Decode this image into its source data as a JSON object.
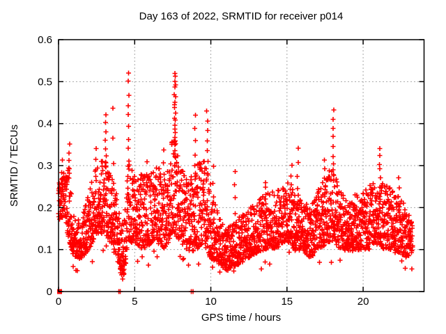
{
  "chart_data": {
    "type": "scatter",
    "title": "Day 163 of 2022, SRMTID for receiver p014",
    "xlabel": "GPS time / hours",
    "ylabel": "SRMTID / TECUs",
    "xlim": [
      0,
      24
    ],
    "ylim": [
      0,
      0.6
    ],
    "xticks": [
      "0",
      "5",
      "10",
      "15",
      "20"
    ],
    "xtick_values": [
      0,
      5,
      10,
      15,
      20
    ],
    "yticks": [
      "0",
      "0.1",
      "0.2",
      "0.3",
      "0.4",
      "0.5",
      "0.6"
    ],
    "ytick_values": [
      0,
      0.1,
      0.2,
      0.3,
      0.4,
      0.5,
      0.6
    ],
    "grid": "dotted",
    "legend": "none",
    "marker": {
      "shape": "plus",
      "color": "#ff0000",
      "size": 7,
      "stroke_width": 1.6
    },
    "colors": {
      "points": "#ff0000",
      "grid": "#a6a6a6",
      "border": "#000000",
      "background": "#ffffff"
    },
    "sampling": {
      "points_per_hour": 120,
      "t_start": 0.0,
      "t_end": 23.25,
      "seed": 163
    },
    "band_envelope": {
      "comment": "approximate 10th-90th percentile band of SRMTID vs GPS hour read from plot",
      "t": [
        0.0,
        0.3,
        0.7,
        1.0,
        1.5,
        2.0,
        2.5,
        3.0,
        3.5,
        4.0,
        4.3,
        4.6,
        5.0,
        5.5,
        6.0,
        6.5,
        7.0,
        7.5,
        8.0,
        8.5,
        9.0,
        9.5,
        10.0,
        10.5,
        11.0,
        11.5,
        12.0,
        12.5,
        13.0,
        13.5,
        14.0,
        14.5,
        15.0,
        15.5,
        16.0,
        16.5,
        17.0,
        17.5,
        18.0,
        18.5,
        19.0,
        19.5,
        20.0,
        20.5,
        21.0,
        21.5,
        22.0,
        22.5,
        23.0,
        23.25
      ],
      "lo": [
        0.17,
        0.18,
        0.12,
        0.08,
        0.08,
        0.1,
        0.14,
        0.14,
        0.11,
        0.05,
        0.04,
        0.12,
        0.12,
        0.1,
        0.11,
        0.12,
        0.1,
        0.14,
        0.12,
        0.1,
        0.1,
        0.11,
        0.08,
        0.07,
        0.05,
        0.06,
        0.07,
        0.08,
        0.09,
        0.1,
        0.1,
        0.11,
        0.12,
        0.1,
        0.1,
        0.08,
        0.1,
        0.11,
        0.12,
        0.1,
        0.1,
        0.1,
        0.1,
        0.1,
        0.11,
        0.1,
        0.1,
        0.09,
        0.08,
        0.09
      ],
      "hi": [
        0.26,
        0.28,
        0.3,
        0.18,
        0.17,
        0.24,
        0.3,
        0.32,
        0.28,
        0.2,
        0.16,
        0.32,
        0.27,
        0.28,
        0.28,
        0.3,
        0.27,
        0.38,
        0.3,
        0.27,
        0.3,
        0.32,
        0.26,
        0.18,
        0.15,
        0.17,
        0.18,
        0.2,
        0.22,
        0.23,
        0.24,
        0.25,
        0.26,
        0.25,
        0.22,
        0.2,
        0.24,
        0.28,
        0.3,
        0.24,
        0.21,
        0.23,
        0.24,
        0.26,
        0.28,
        0.26,
        0.24,
        0.22,
        0.19,
        0.16
      ],
      "occasional_low_fraction": 0.012,
      "skew": 1.45
    },
    "burst_spikes": [
      {
        "t": 0.25,
        "peak": 0.315,
        "n": 3
      },
      {
        "t": 0.7,
        "peak": 0.35,
        "n": 5
      },
      {
        "t": 2.45,
        "peak": 0.34,
        "n": 4
      },
      {
        "t": 3.1,
        "peak": 0.42,
        "n": 8
      },
      {
        "t": 3.6,
        "peak": 0.435,
        "n": 4
      },
      {
        "t": 4.6,
        "peak": 0.525,
        "n": 10
      },
      {
        "t": 5.8,
        "peak": 0.31,
        "n": 3
      },
      {
        "t": 6.9,
        "peak": 0.335,
        "n": 4
      },
      {
        "t": 7.65,
        "peak": 0.52,
        "n": 22
      },
      {
        "t": 8.95,
        "peak": 0.42,
        "n": 6
      },
      {
        "t": 9.75,
        "peak": 0.43,
        "n": 8
      },
      {
        "t": 10.15,
        "peak": 0.3,
        "n": 3
      },
      {
        "t": 11.6,
        "peak": 0.29,
        "n": 5
      },
      {
        "t": 13.6,
        "peak": 0.26,
        "n": 5
      },
      {
        "t": 15.3,
        "peak": 0.3,
        "n": 4
      },
      {
        "t": 15.7,
        "peak": 0.34,
        "n": 5
      },
      {
        "t": 17.5,
        "peak": 0.31,
        "n": 4
      },
      {
        "t": 18.05,
        "peak": 0.43,
        "n": 9
      },
      {
        "t": 21.1,
        "peak": 0.34,
        "n": 6
      },
      {
        "t": 22.35,
        "peak": 0.27,
        "n": 4
      }
    ],
    "explicit_points": {
      "zero_value_plus_markers_t": [
        3.95,
        4.05,
        8.72,
        8.82
      ],
      "low_trail": [
        [
          4.0,
          0.1
        ],
        [
          4.05,
          0.075
        ],
        [
          4.1,
          0.055
        ],
        [
          4.15,
          0.04
        ],
        [
          4.2,
          0.03
        ],
        [
          4.25,
          0.05
        ],
        [
          4.3,
          0.065
        ]
      ],
      "origin_square_marker": [
        0.07,
        0.0
      ]
    }
  }
}
